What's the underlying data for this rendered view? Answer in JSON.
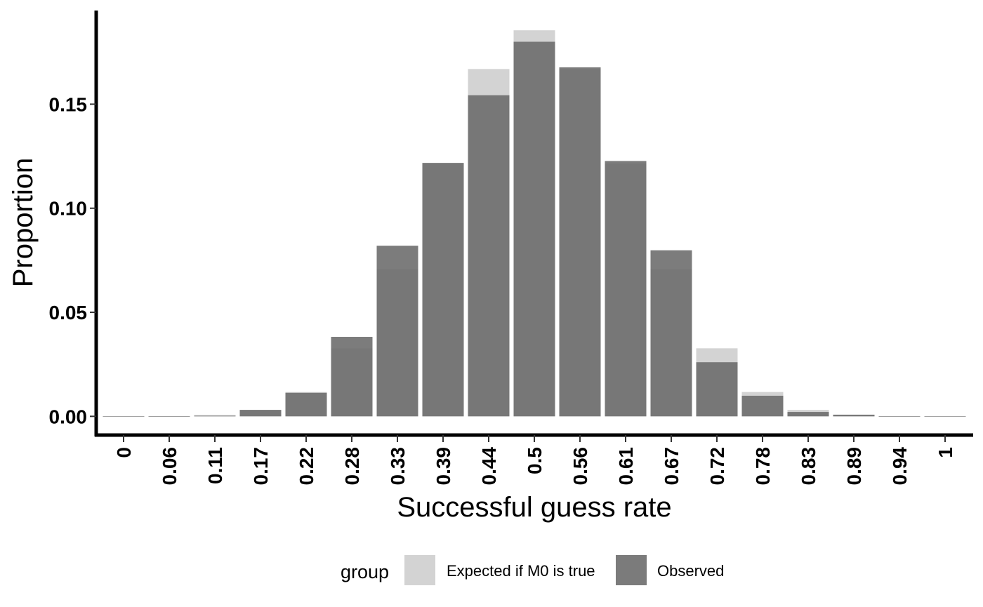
{
  "chart_data": {
    "type": "bar",
    "title": "",
    "xlabel": "Successful guess rate",
    "ylabel": "Proportion",
    "ylim": [
      -0.009,
      0.195
    ],
    "yticks": [
      "0.00",
      "0.05",
      "0.10",
      "0.15"
    ],
    "ytick_values": [
      0,
      0.05,
      0.1,
      0.15
    ],
    "categories": [
      "0",
      "0.06",
      "0.11",
      "0.17",
      "0.22",
      "0.28",
      "0.33",
      "0.39",
      "0.44",
      "0.5",
      "0.56",
      "0.61",
      "0.67",
      "0.72",
      "0.78",
      "0.83",
      "0.89",
      "0.94",
      "1"
    ],
    "series": [
      {
        "name": "Expected if M0 is true",
        "color": "#d3d3d3",
        "values": [
          1e-05,
          0.0001,
          0.0006,
          0.0031,
          0.0117,
          0.0327,
          0.0708,
          0.1214,
          0.1669,
          0.1855,
          0.1669,
          0.1214,
          0.0708,
          0.0327,
          0.0117,
          0.0031,
          0.0006,
          0.0001,
          1e-05
        ]
      },
      {
        "name": "Observed",
        "color": "#6a6a6a",
        "values": [
          0.0,
          0.0,
          0.0003,
          0.0031,
          0.0113,
          0.0382,
          0.082,
          0.1218,
          0.1543,
          0.18,
          0.1677,
          0.1227,
          0.0798,
          0.026,
          0.0099,
          0.0021,
          0.0008,
          0.0,
          0.0
        ]
      }
    ],
    "grid": false,
    "legend": {
      "title": "group",
      "position": "bottom",
      "entries": [
        {
          "label": "Expected if M0 is true",
          "color": "#d3d3d3"
        },
        {
          "label": "Observed",
          "color": "#7b7b7b"
        }
      ]
    }
  }
}
